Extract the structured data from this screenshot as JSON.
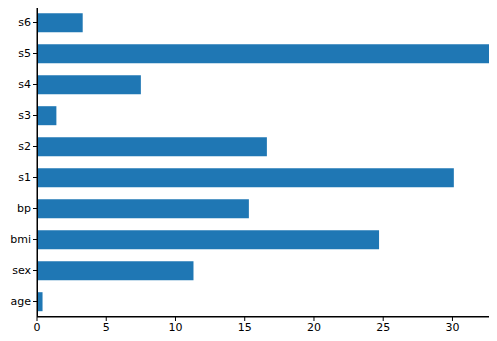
{
  "chart_data": {
    "type": "bar",
    "orientation": "horizontal",
    "categories": [
      "age",
      "sex",
      "bmi",
      "bp",
      "s1",
      "s2",
      "s3",
      "s4",
      "s5",
      "s6"
    ],
    "values": [
      0.4,
      11.3,
      24.7,
      15.3,
      30.1,
      16.6,
      1.4,
      7.5,
      32.8,
      3.3
    ],
    "color": "#1f77b4",
    "xlim": [
      0,
      33
    ],
    "xticks": [
      0,
      5,
      10,
      15,
      20,
      25,
      30
    ],
    "grid": false
  }
}
